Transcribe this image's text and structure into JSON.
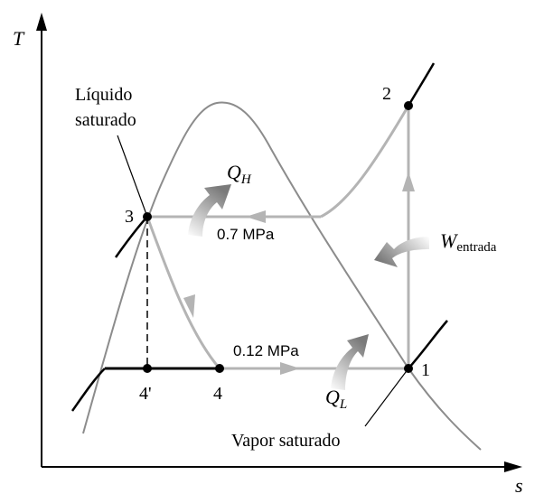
{
  "axes": {
    "y_label": "T",
    "x_label": "s"
  },
  "labels": {
    "liquid_line1": "Líquido",
    "liquid_line2": "saturado",
    "vapor": "Vapor saturado",
    "high_pressure": "0.7 MPa",
    "low_pressure": "0.12 MPa",
    "qh_main": "Q",
    "qh_sub": "H",
    "ql_main": "Q",
    "ql_sub": "L",
    "w_main": "W",
    "w_sub": "entrada"
  },
  "states": {
    "p1": "1",
    "p2": "2",
    "p3": "3",
    "p4": "4",
    "p4prime": "4'"
  },
  "colors": {
    "dome": "#8c8c8c",
    "cycle": "#b4b4b4",
    "isobar_dark": "#000000",
    "axis": "#000000",
    "heat_arrow": "#8a8a8a"
  }
}
